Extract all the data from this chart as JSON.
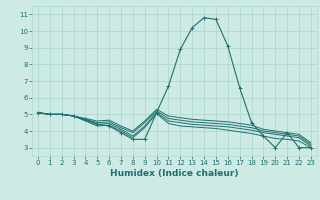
{
  "xlabel": "Humidex (Indice chaleur)",
  "background_color": "#cdeae4",
  "grid_color": "#b0d8d0",
  "line_color": "#1e7070",
  "xlim": [
    -0.5,
    23.5
  ],
  "ylim": [
    2.5,
    11.5
  ],
  "xticks": [
    0,
    1,
    2,
    3,
    4,
    5,
    6,
    7,
    8,
    9,
    10,
    11,
    12,
    13,
    14,
    15,
    16,
    17,
    18,
    19,
    20,
    21,
    22,
    23
  ],
  "yticks": [
    3,
    4,
    5,
    6,
    7,
    8,
    9,
    10,
    11
  ],
  "lines": [
    [
      5.1,
      5.0,
      5.0,
      4.9,
      4.7,
      4.4,
      4.3,
      3.9,
      3.5,
      3.5,
      5.1,
      6.7,
      8.9,
      10.2,
      10.8,
      10.7,
      9.1,
      6.6,
      4.5,
      3.7,
      3.0,
      3.9,
      3.0,
      3.0
    ],
    [
      5.1,
      5.0,
      5.0,
      4.9,
      4.6,
      4.3,
      4.35,
      4.0,
      3.6,
      4.2,
      5.05,
      4.45,
      4.3,
      4.25,
      4.2,
      4.15,
      4.05,
      3.95,
      3.85,
      3.7,
      3.55,
      3.5,
      3.4,
      3.0
    ],
    [
      5.1,
      5.0,
      5.0,
      4.9,
      4.65,
      4.4,
      4.45,
      4.1,
      3.7,
      4.3,
      5.1,
      4.6,
      4.5,
      4.4,
      4.35,
      4.3,
      4.25,
      4.15,
      4.05,
      3.9,
      3.8,
      3.7,
      3.6,
      3.1
    ],
    [
      5.1,
      5.0,
      5.0,
      4.9,
      4.7,
      4.5,
      4.55,
      4.2,
      3.9,
      4.5,
      5.2,
      4.75,
      4.65,
      4.55,
      4.5,
      4.45,
      4.4,
      4.3,
      4.2,
      4.0,
      3.9,
      3.8,
      3.7,
      3.2
    ],
    [
      5.1,
      5.0,
      5.0,
      4.9,
      4.75,
      4.6,
      4.65,
      4.3,
      4.0,
      4.6,
      5.3,
      4.9,
      4.8,
      4.7,
      4.65,
      4.6,
      4.55,
      4.45,
      4.35,
      4.1,
      4.0,
      3.9,
      3.8,
      3.3
    ]
  ]
}
